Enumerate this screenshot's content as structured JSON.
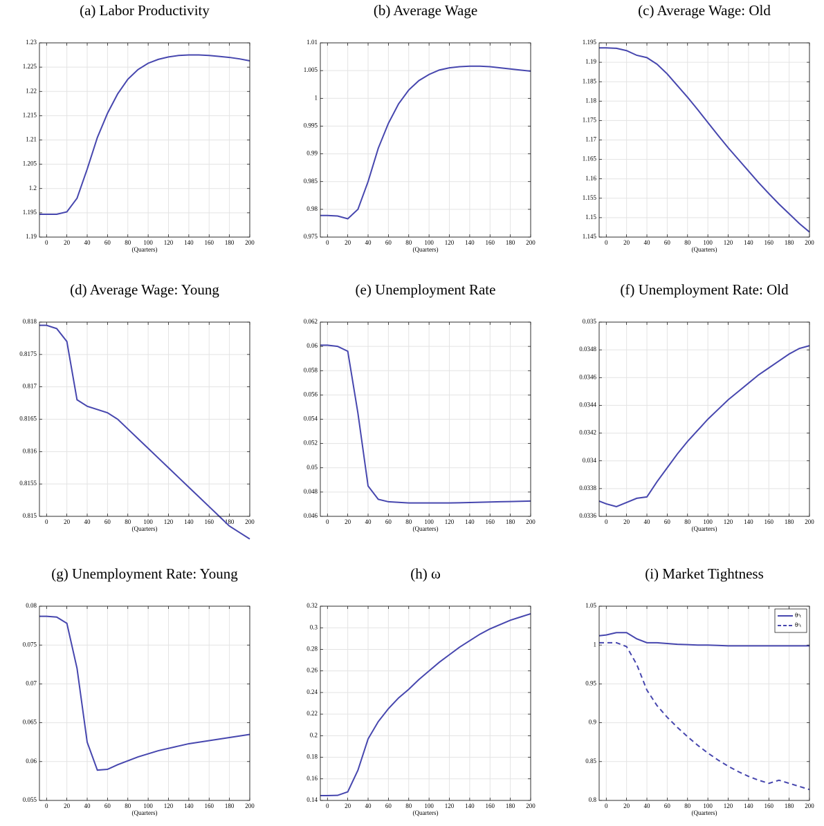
{
  "chart_data": [
    {
      "type": "line",
      "title": "(a) Labor Productivity",
      "xlabel": "(Quarters)",
      "x": [
        -7,
        0,
        10,
        20,
        30,
        40,
        50,
        60,
        70,
        80,
        90,
        100,
        110,
        120,
        130,
        140,
        150,
        160,
        170,
        180,
        190,
        200
      ],
      "series": [
        {
          "color": "#4646ae",
          "values": [
            1.1947,
            1.1947,
            1.1947,
            1.1952,
            1.198,
            1.204,
            1.2105,
            1.2155,
            1.2195,
            1.2225,
            1.2245,
            1.2258,
            1.2266,
            1.2271,
            1.2274,
            1.2275,
            1.2275,
            1.2274,
            1.2272,
            1.227,
            1.2267,
            1.2263
          ]
        }
      ],
      "xlim": [
        -7,
        200
      ],
      "xticks": [
        0,
        20,
        40,
        60,
        80,
        100,
        120,
        140,
        160,
        180,
        200
      ],
      "ylim": [
        1.19,
        1.23
      ],
      "yticks": [
        1.19,
        1.195,
        1.2,
        1.205,
        1.21,
        1.215,
        1.22,
        1.225,
        1.23
      ],
      "grid": true
    },
    {
      "type": "line",
      "title": "(b) Average Wage",
      "xlabel": "(Quarters)",
      "x": [
        -7,
        0,
        10,
        20,
        30,
        40,
        50,
        60,
        70,
        80,
        90,
        100,
        110,
        120,
        130,
        140,
        150,
        160,
        170,
        180,
        190,
        200
      ],
      "series": [
        {
          "color": "#4646ae",
          "values": [
            0.9789,
            0.9789,
            0.9788,
            0.9783,
            0.98,
            0.985,
            0.991,
            0.9955,
            0.999,
            1.0015,
            1.0032,
            1.0043,
            1.0051,
            1.0055,
            1.0057,
            1.0058,
            1.0058,
            1.0057,
            1.0055,
            1.0053,
            1.0051,
            1.0049
          ]
        }
      ],
      "xlim": [
        -7,
        200
      ],
      "xticks": [
        0,
        20,
        40,
        60,
        80,
        100,
        120,
        140,
        160,
        180,
        200
      ],
      "ylim": [
        0.975,
        1.01
      ],
      "yticks": [
        0.975,
        0.98,
        0.985,
        0.99,
        0.995,
        1,
        1.005,
        1.01
      ],
      "grid": true
    },
    {
      "type": "line",
      "title": "(c) Average Wage: Old",
      "xlabel": "(Quarters)",
      "x": [
        -7,
        0,
        10,
        20,
        30,
        40,
        50,
        60,
        70,
        80,
        90,
        100,
        110,
        120,
        130,
        140,
        150,
        160,
        170,
        180,
        190,
        200
      ],
      "series": [
        {
          "color": "#4646ae",
          "values": [
            1.1937,
            1.1937,
            1.1936,
            1.193,
            1.1918,
            1.1912,
            1.1895,
            1.187,
            1.184,
            1.181,
            1.1778,
            1.1745,
            1.1712,
            1.168,
            1.165,
            1.162,
            1.159,
            1.1562,
            1.1535,
            1.151,
            1.1485,
            1.1463
          ]
        }
      ],
      "xlim": [
        -7,
        200
      ],
      "xticks": [
        0,
        20,
        40,
        60,
        80,
        100,
        120,
        140,
        160,
        180,
        200
      ],
      "ylim": [
        1.145,
        1.195
      ],
      "yticks": [
        1.145,
        1.15,
        1.155,
        1.16,
        1.165,
        1.17,
        1.175,
        1.18,
        1.185,
        1.19,
        1.195
      ],
      "grid": true
    },
    {
      "type": "line",
      "title": "(d) Average Wage: Young",
      "xlabel": "(Quarters)",
      "x": [
        -7,
        0,
        10,
        20,
        30,
        40,
        50,
        60,
        70,
        80,
        90,
        100,
        110,
        120,
        130,
        140,
        150,
        160,
        170,
        180,
        190,
        200
      ],
      "series": [
        {
          "color": "#4646ae",
          "values": [
            0.81795,
            0.81795,
            0.8179,
            0.8177,
            0.8168,
            0.8167,
            0.81665,
            0.8166,
            0.8165,
            0.81635,
            0.8162,
            0.81605,
            0.8159,
            0.81575,
            0.8156,
            0.81545,
            0.8153,
            0.81515,
            0.815,
            0.81485,
            0.81475,
            0.81465
          ]
        }
      ],
      "xlim": [
        -7,
        200
      ],
      "xticks": [
        0,
        20,
        40,
        60,
        80,
        100,
        120,
        140,
        160,
        180,
        200
      ],
      "ylim": [
        0.815,
        0.818
      ],
      "yticks": [
        0.815,
        0.8155,
        0.816,
        0.8165,
        0.817,
        0.8175,
        0.818
      ],
      "grid": true
    },
    {
      "type": "line",
      "title": "(e) Unemployment Rate",
      "xlabel": "(Quarters)",
      "x": [
        -7,
        0,
        10,
        20,
        30,
        40,
        50,
        60,
        70,
        80,
        90,
        100,
        110,
        120,
        130,
        140,
        150,
        160,
        170,
        180,
        190,
        200
      ],
      "series": [
        {
          "color": "#4646ae",
          "values": [
            0.0601,
            0.0601,
            0.06,
            0.0596,
            0.0545,
            0.0485,
            0.0474,
            0.0472,
            0.04715,
            0.0471,
            0.0471,
            0.0471,
            0.0471,
            0.0471,
            0.04712,
            0.04714,
            0.04716,
            0.04718,
            0.0472,
            0.04722,
            0.04724,
            0.04726
          ]
        }
      ],
      "xlim": [
        -7,
        200
      ],
      "xticks": [
        0,
        20,
        40,
        60,
        80,
        100,
        120,
        140,
        160,
        180,
        200
      ],
      "ylim": [
        0.046,
        0.062
      ],
      "yticks": [
        0.046,
        0.048,
        0.05,
        0.052,
        0.054,
        0.056,
        0.058,
        0.06,
        0.062
      ],
      "grid": true
    },
    {
      "type": "line",
      "title": "(f) Unemployment Rate: Old",
      "xlabel": "(Quarters)",
      "x": [
        -7,
        0,
        10,
        20,
        30,
        40,
        50,
        60,
        70,
        80,
        90,
        100,
        110,
        120,
        130,
        140,
        150,
        160,
        170,
        180,
        190,
        200
      ],
      "series": [
        {
          "color": "#4646ae",
          "values": [
            0.03371,
            0.03369,
            0.03367,
            0.0337,
            0.03373,
            0.03374,
            0.03385,
            0.03395,
            0.03405,
            0.03414,
            0.03422,
            0.0343,
            0.03437,
            0.03444,
            0.0345,
            0.03456,
            0.03462,
            0.03467,
            0.03472,
            0.03477,
            0.03481,
            0.03483
          ]
        }
      ],
      "xlim": [
        -7,
        200
      ],
      "xticks": [
        0,
        20,
        40,
        60,
        80,
        100,
        120,
        140,
        160,
        180,
        200
      ],
      "ylim": [
        0.0336,
        0.035
      ],
      "yticks": [
        0.0336,
        0.0338,
        0.034,
        0.0342,
        0.0344,
        0.0346,
        0.0348,
        0.035
      ],
      "grid": true
    },
    {
      "type": "line",
      "title": "(g) Unemployment Rate: Young",
      "xlabel": "(Quarters)",
      "x": [
        -7,
        0,
        10,
        20,
        30,
        40,
        50,
        60,
        70,
        80,
        90,
        100,
        110,
        120,
        130,
        140,
        150,
        160,
        170,
        180,
        190,
        200
      ],
      "series": [
        {
          "color": "#4646ae",
          "values": [
            0.0787,
            0.0787,
            0.0786,
            0.0778,
            0.072,
            0.0625,
            0.0589,
            0.059,
            0.0596,
            0.0601,
            0.0606,
            0.061,
            0.0614,
            0.0617,
            0.062,
            0.0623,
            0.0625,
            0.0627,
            0.0629,
            0.0631,
            0.0633,
            0.0635
          ]
        }
      ],
      "xlim": [
        -7,
        200
      ],
      "xticks": [
        0,
        20,
        40,
        60,
        80,
        100,
        120,
        140,
        160,
        180,
        200
      ],
      "ylim": [
        0.055,
        0.08
      ],
      "yticks": [
        0.055,
        0.06,
        0.065,
        0.07,
        0.075,
        0.08
      ],
      "grid": true
    },
    {
      "type": "line",
      "title": "(h) ω",
      "xlabel": "(Quarters)",
      "x": [
        -7,
        0,
        10,
        20,
        30,
        40,
        50,
        60,
        70,
        80,
        90,
        100,
        110,
        120,
        130,
        140,
        150,
        160,
        170,
        180,
        190,
        200
      ],
      "series": [
        {
          "color": "#4646ae",
          "values": [
            0.1445,
            0.1445,
            0.1447,
            0.148,
            0.168,
            0.197,
            0.213,
            0.225,
            0.235,
            0.243,
            0.252,
            0.26,
            0.268,
            0.275,
            0.282,
            0.288,
            0.294,
            0.299,
            0.303,
            0.307,
            0.31,
            0.313
          ]
        }
      ],
      "xlim": [
        -7,
        200
      ],
      "xticks": [
        0,
        20,
        40,
        60,
        80,
        100,
        120,
        140,
        160,
        180,
        200
      ],
      "ylim": [
        0.14,
        0.32
      ],
      "yticks": [
        0.14,
        0.16,
        0.18,
        0.2,
        0.22,
        0.24,
        0.26,
        0.28,
        0.3,
        0.32
      ],
      "grid": true
    },
    {
      "type": "line",
      "title": "(i) Market Tightness",
      "xlabel": "(Quarters)",
      "x": [
        -7,
        0,
        10,
        20,
        30,
        40,
        50,
        60,
        70,
        80,
        90,
        100,
        110,
        120,
        130,
        140,
        150,
        160,
        170,
        180,
        190,
        200
      ],
      "series": [
        {
          "name": "θᵒₜ",
          "color": "#4646ae",
          "linestyle": "solid",
          "values": [
            1.012,
            1.013,
            1.016,
            1.016,
            1.008,
            1.003,
            1.003,
            1.002,
            1.001,
            1.0005,
            1,
            1,
            0.9995,
            0.999,
            0.999,
            0.999,
            0.999,
            0.999,
            0.999,
            0.999,
            0.999,
            0.999
          ]
        },
        {
          "name": "θʸₜ",
          "color": "#4646ae",
          "linestyle": "dashed",
          "values": [
            1.003,
            1.003,
            1.003,
            0.998,
            0.975,
            0.942,
            0.922,
            0.907,
            0.894,
            0.882,
            0.871,
            0.861,
            0.852,
            0.844,
            0.837,
            0.831,
            0.826,
            0.822,
            0.826,
            0.822,
            0.818,
            0.814
          ]
        }
      ],
      "xlim": [
        -7,
        200
      ],
      "xticks": [
        0,
        20,
        40,
        60,
        80,
        100,
        120,
        140,
        160,
        180,
        200
      ],
      "ylim": [
        0.8,
        1.05
      ],
      "yticks": [
        0.8,
        0.85,
        0.9,
        0.95,
        1,
        1.05
      ],
      "grid": true,
      "legend": "northeast"
    }
  ]
}
